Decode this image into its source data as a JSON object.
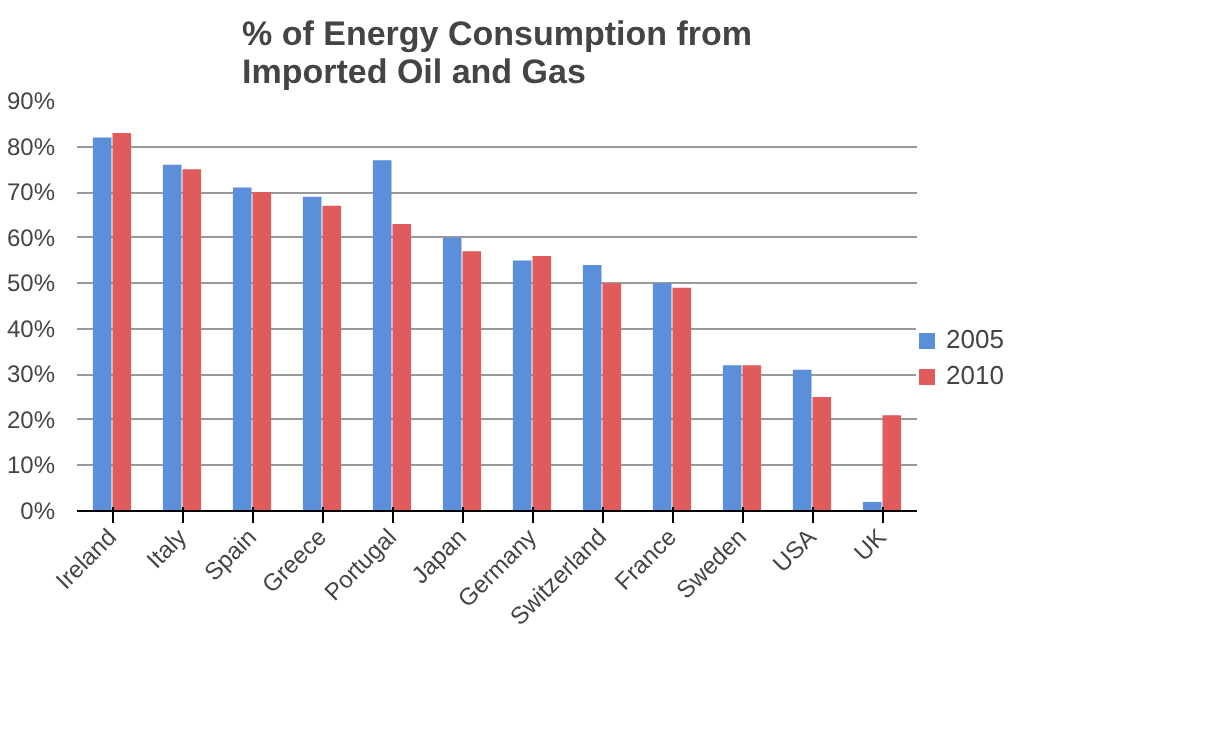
{
  "chart_data": {
    "type": "bar",
    "title": "% of Energy Consumption from\nImported Oil and Gas",
    "categories": [
      "Ireland",
      "Italy",
      "Spain",
      "Greece",
      "Portugal",
      "Japan",
      "Germany",
      "Switzerland",
      "France",
      "Sweden",
      "USA",
      "UK"
    ],
    "series": [
      {
        "name": "2005",
        "color": "#5b8fd9",
        "values": [
          82,
          76,
          71,
          69,
          77,
          60,
          55,
          54,
          50,
          32,
          31,
          2
        ]
      },
      {
        "name": "2010",
        "color": "#e05c5c",
        "values": [
          83,
          75,
          70,
          67,
          63,
          57,
          56,
          50,
          49,
          32,
          25,
          21
        ]
      }
    ],
    "ylim": [
      0,
      90
    ],
    "yticks": [
      {
        "value": 0,
        "label": "0%"
      },
      {
        "value": 10,
        "label": "10%"
      },
      {
        "value": 20,
        "label": "20%"
      },
      {
        "value": 30,
        "label": "30%"
      },
      {
        "value": 40,
        "label": "40%"
      },
      {
        "value": 50,
        "label": "50%"
      },
      {
        "value": 60,
        "label": "60%"
      },
      {
        "value": 70,
        "label": "70%"
      },
      {
        "value": 80,
        "label": "80%"
      },
      {
        "value": 90,
        "label": "90%"
      }
    ],
    "grid": "y",
    "legend": "right"
  }
}
